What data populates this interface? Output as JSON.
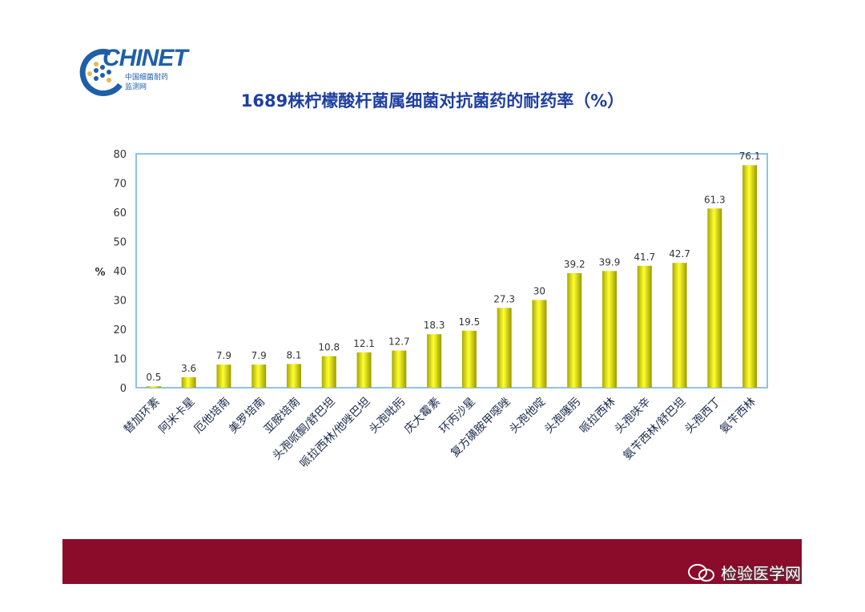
{
  "logo": {
    "word": "CHINET",
    "sub1": "中国细菌耐药",
    "sub2": "监测网"
  },
  "title": "1689株柠檬酸杆菌属细菌对抗菌药的耐药率（%）",
  "watermark": "检验医学网",
  "colors": {
    "bar": "#e6e600",
    "plot_border": "#8fc3e8",
    "axis_text": "#333333",
    "banner": "#8b0b2a",
    "title": "#1f3f9f"
  },
  "chart_data": {
    "type": "bar",
    "title": "1689株柠檬酸杆菌属细菌对抗菌药的耐药率（%）",
    "xlabel": "",
    "ylabel": "%",
    "ylim": [
      0,
      80
    ],
    "yticks": [
      0,
      10,
      20,
      30,
      40,
      50,
      60,
      70,
      80
    ],
    "grid": false,
    "categories": [
      "替加环素",
      "阿米卡星",
      "厄他培南",
      "美罗培南",
      "亚胺培南",
      "头孢哌酮/舒巴坦",
      "哌拉西林/他唑巴坦",
      "头孢吡肟",
      "庆大霉素",
      "环丙沙星",
      "复方磺胺甲噁唑",
      "头孢他啶",
      "头孢噻肟",
      "哌拉西林",
      "头孢呋辛",
      "氨苄西林/舒巴坦",
      "头孢西丁",
      "氨苄西林"
    ],
    "values": [
      0.5,
      3.6,
      7.9,
      7.9,
      8.1,
      10.8,
      12.1,
      12.7,
      18.3,
      19.5,
      27.3,
      30,
      39.2,
      39.9,
      41.7,
      42.7,
      61.3,
      76.1
    ],
    "labels": [
      "0.5",
      "3.6",
      "7.9",
      "7.9",
      "8.1",
      "10.8",
      "12.1",
      "12.7",
      "18.3",
      "19.5",
      "27.3",
      "30",
      "39.2",
      "39.9",
      "41.7",
      "42.7",
      "61.3",
      "76.1"
    ]
  }
}
